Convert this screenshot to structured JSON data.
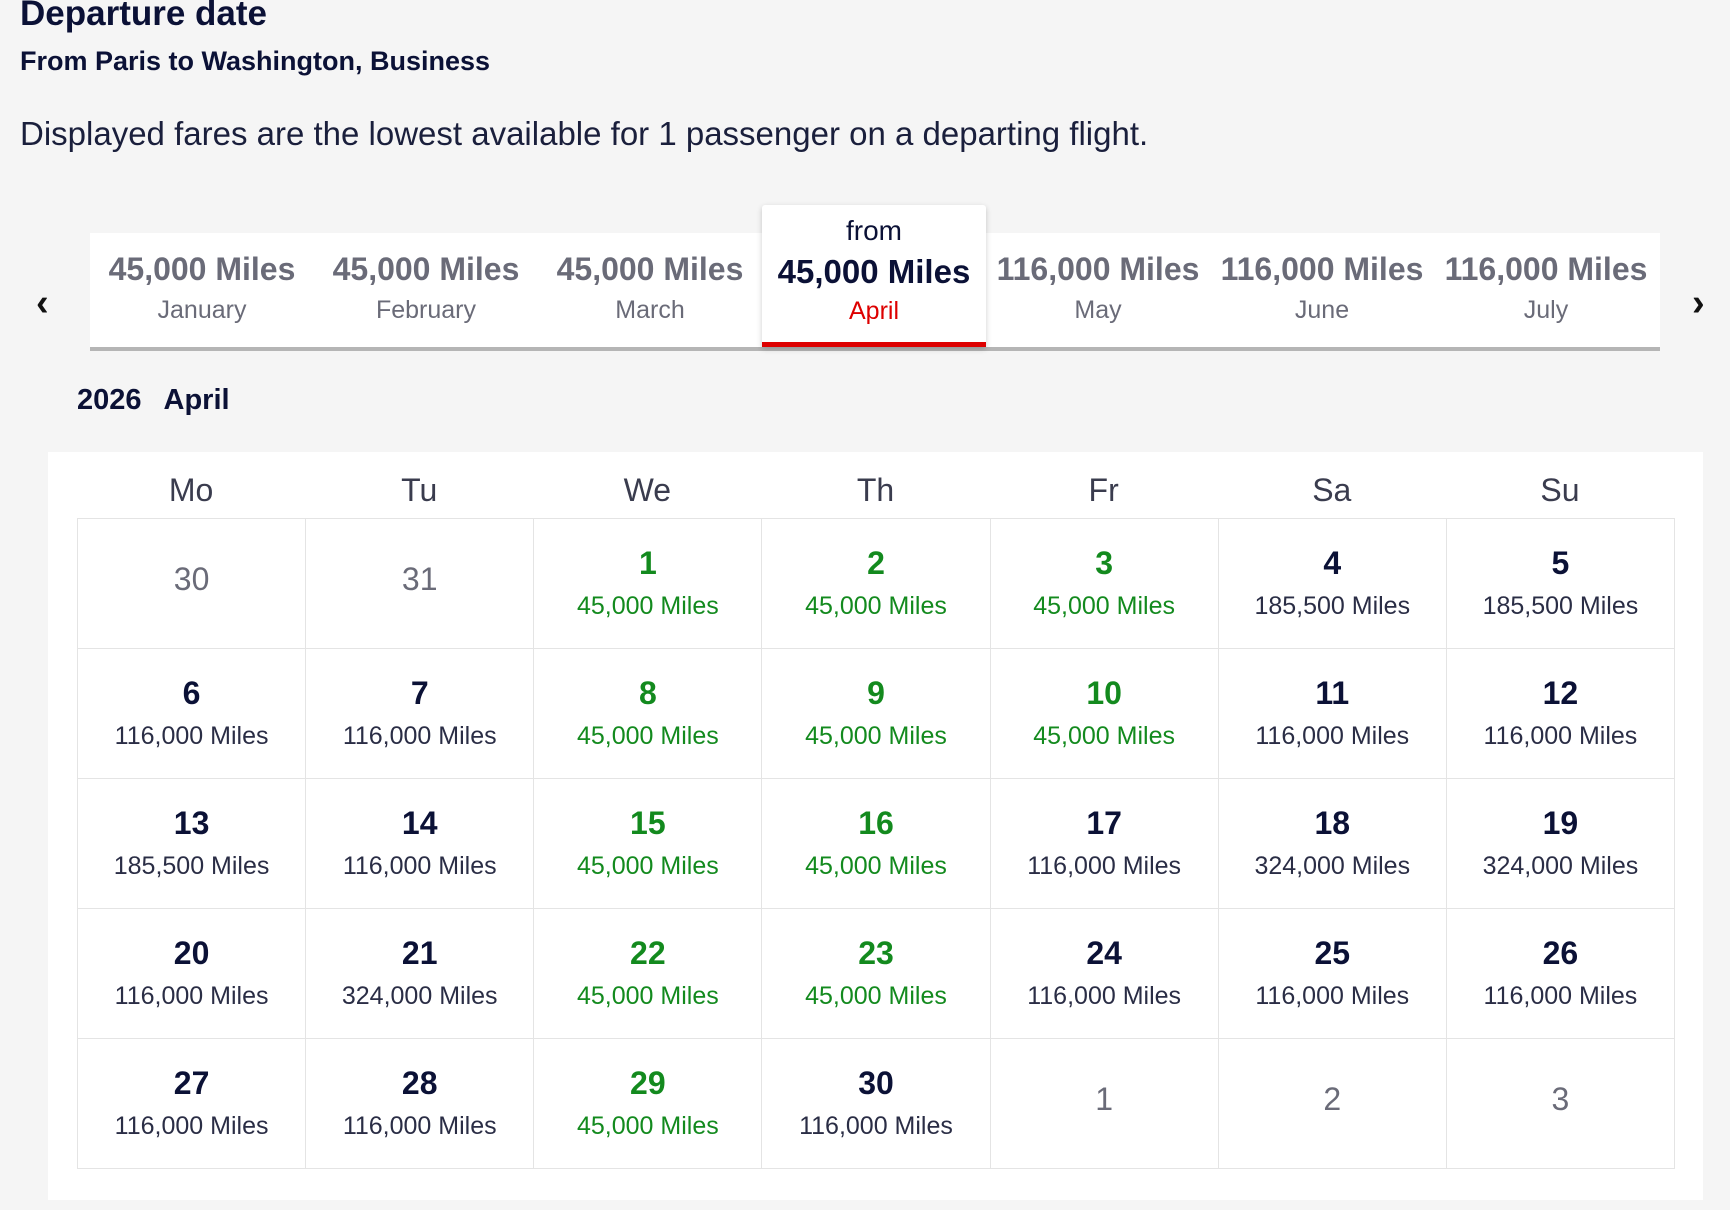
{
  "header": {
    "title": "Departure date",
    "subtitle": "From Paris to Washington, Business",
    "description": "Displayed fares are the lowest available for 1 passenger on a departing flight."
  },
  "carousel": {
    "prev_icon": "chevron-left-icon",
    "next_icon": "chevron-right-icon",
    "from_label": "from",
    "months": [
      {
        "miles": "45,000 Miles",
        "name": "January",
        "active": false
      },
      {
        "miles": "45,000 Miles",
        "name": "February",
        "active": false
      },
      {
        "miles": "45,000 Miles",
        "name": "March",
        "active": false
      },
      {
        "miles": "45,000 Miles",
        "name": "April",
        "active": true
      },
      {
        "miles": "116,000 Miles",
        "name": "May",
        "active": false
      },
      {
        "miles": "116,000 Miles",
        "name": "June",
        "active": false
      },
      {
        "miles": "116,000 Miles",
        "name": "July",
        "active": false
      }
    ]
  },
  "calendar": {
    "year": "2026",
    "month": "April",
    "weekdays": [
      "Mo",
      "Tu",
      "We",
      "Th",
      "Fr",
      "Sa",
      "Su"
    ],
    "colors": {
      "cheapest": "#138a1e",
      "accent": "#dd0000"
    },
    "days": [
      {
        "d": "30",
        "out": true
      },
      {
        "d": "31",
        "out": true
      },
      {
        "d": "1",
        "p": "45,000 Miles",
        "g": true
      },
      {
        "d": "2",
        "p": "45,000 Miles",
        "g": true
      },
      {
        "d": "3",
        "p": "45,000 Miles",
        "g": true
      },
      {
        "d": "4",
        "p": "185,500 Miles"
      },
      {
        "d": "5",
        "p": "185,500 Miles"
      },
      {
        "d": "6",
        "p": "116,000 Miles"
      },
      {
        "d": "7",
        "p": "116,000 Miles"
      },
      {
        "d": "8",
        "p": "45,000 Miles",
        "g": true
      },
      {
        "d": "9",
        "p": "45,000 Miles",
        "g": true
      },
      {
        "d": "10",
        "p": "45,000 Miles",
        "g": true
      },
      {
        "d": "11",
        "p": "116,000 Miles"
      },
      {
        "d": "12",
        "p": "116,000 Miles"
      },
      {
        "d": "13",
        "p": "185,500 Miles"
      },
      {
        "d": "14",
        "p": "116,000 Miles"
      },
      {
        "d": "15",
        "p": "45,000 Miles",
        "g": true
      },
      {
        "d": "16",
        "p": "45,000 Miles",
        "g": true
      },
      {
        "d": "17",
        "p": "116,000 Miles"
      },
      {
        "d": "18",
        "p": "324,000 Miles"
      },
      {
        "d": "19",
        "p": "324,000 Miles"
      },
      {
        "d": "20",
        "p": "116,000 Miles"
      },
      {
        "d": "21",
        "p": "324,000 Miles"
      },
      {
        "d": "22",
        "p": "45,000 Miles",
        "g": true
      },
      {
        "d": "23",
        "p": "45,000 Miles",
        "g": true
      },
      {
        "d": "24",
        "p": "116,000 Miles"
      },
      {
        "d": "25",
        "p": "116,000 Miles"
      },
      {
        "d": "26",
        "p": "116,000 Miles"
      },
      {
        "d": "27",
        "p": "116,000 Miles"
      },
      {
        "d": "28",
        "p": "116,000 Miles"
      },
      {
        "d": "29",
        "p": "45,000 Miles",
        "g": true
      },
      {
        "d": "30",
        "p": "116,000 Miles"
      },
      {
        "d": "1",
        "out": true
      },
      {
        "d": "2",
        "out": true
      },
      {
        "d": "3",
        "out": true
      }
    ]
  }
}
